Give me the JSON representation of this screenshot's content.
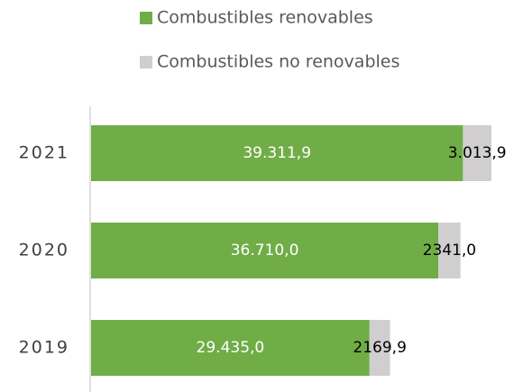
{
  "chart_data": {
    "type": "stacked-horizontal-bar",
    "categories": [
      "2021",
      "2020",
      "2019"
    ],
    "series": [
      {
        "name": "Combustibles renovables",
        "color": "#70ad47",
        "values": [
          39311.9,
          36710.0,
          29435.0
        ],
        "value_labels": [
          "39.311,9",
          "36.710,0",
          "29.435,0"
        ]
      },
      {
        "name": "Combustibles no renovables",
        "color": "#d0cece",
        "values": [
          3013.9,
          2341.0,
          2169.9
        ],
        "value_labels": [
          "3.013,9",
          "2341,0",
          "2169,9"
        ]
      }
    ],
    "legend": "top"
  }
}
